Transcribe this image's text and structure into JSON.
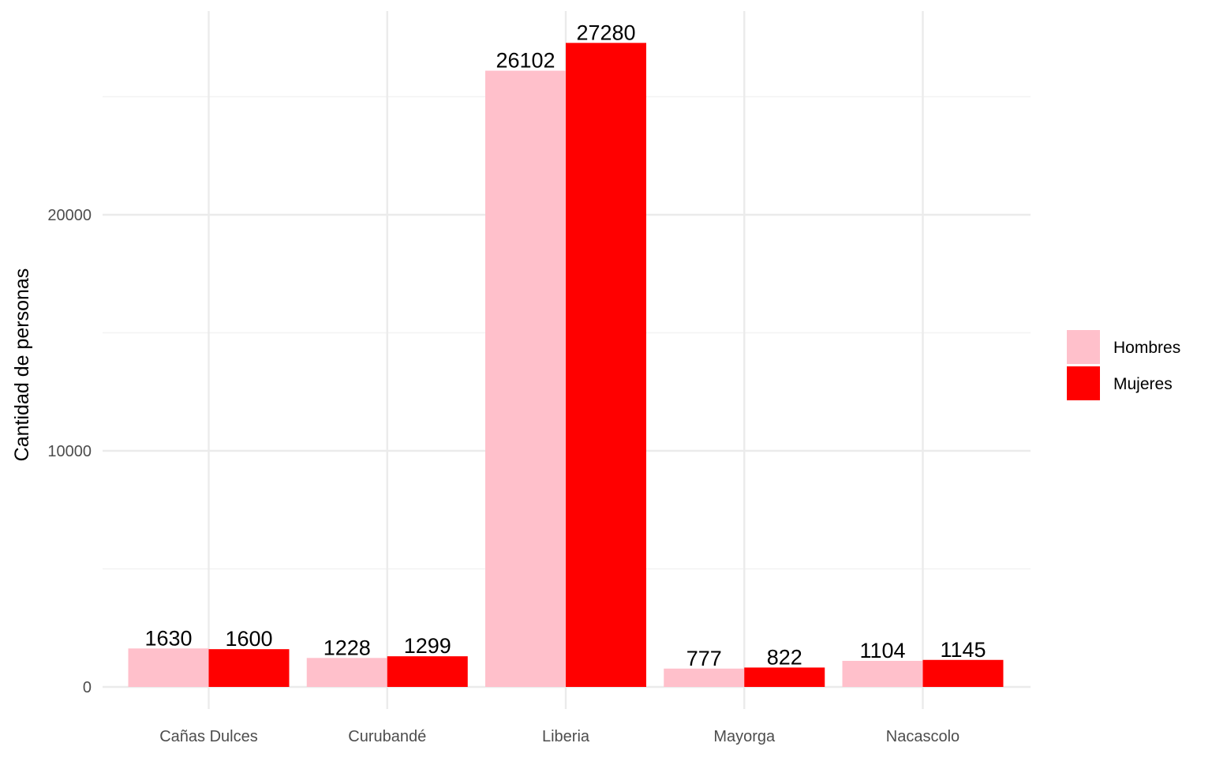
{
  "chart_data": {
    "type": "bar",
    "categories": [
      "Cañas Dulces",
      "Curubandé",
      "Liberia",
      "Mayorga",
      "Nacascolo"
    ],
    "series": [
      {
        "name": "Hombres",
        "values": [
          1630,
          1228,
          26102,
          777,
          1104
        ],
        "color": "#FFC0CB"
      },
      {
        "name": "Mujeres",
        "values": [
          1600,
          1299,
          27280,
          822,
          1145
        ],
        "color": "#FF0000"
      }
    ],
    "ylabel": "Cantidad de personas",
    "xlabel": "",
    "ylim": [
      0,
      28600
    ],
    "yticks": [
      0,
      10000,
      20000
    ],
    "y_tick_labels": [
      "0",
      "10000",
      "20000"
    ],
    "grid": true,
    "legend_position": "right"
  }
}
